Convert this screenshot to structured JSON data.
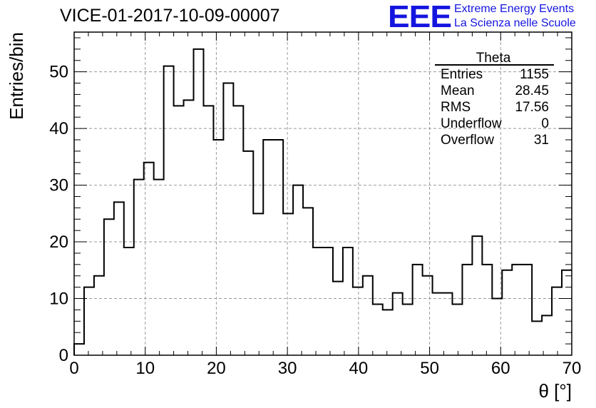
{
  "header": {
    "title": "VICE-01-2017-10-09-00007",
    "logo_text": "EEE",
    "logo_line1": "Extreme Energy Events",
    "logo_line2": "La Scienza nelle Scuole"
  },
  "stats_box": {
    "title": "Theta",
    "rows": [
      {
        "label": "Entries",
        "value": "1155"
      },
      {
        "label": "Mean",
        "value": "28.45"
      },
      {
        "label": "RMS",
        "value": "17.56"
      },
      {
        "label": "Underflow",
        "value": "0"
      },
      {
        "label": "Overflow",
        "value": "31"
      }
    ]
  },
  "colors": {
    "logo": "#1515e0",
    "histogram": "#000000",
    "grid": "#999999"
  },
  "chart_data": {
    "type": "bar",
    "style": "step-histogram",
    "xlabel": "θ [°]",
    "ylabel": "Entries/bin",
    "xlim": [
      0,
      70
    ],
    "ylim": [
      0,
      57
    ],
    "bin_width": 1.4,
    "xticks": [
      0,
      10,
      20,
      30,
      40,
      50,
      60,
      70
    ],
    "yticks": [
      0,
      10,
      20,
      30,
      40,
      50
    ],
    "grid": true,
    "values": [
      2,
      12,
      14,
      24,
      27,
      19,
      31,
      34,
      31,
      51,
      44,
      45,
      54,
      44,
      38,
      48,
      44,
      36,
      25,
      38,
      38,
      25,
      30,
      26,
      19,
      19,
      13,
      19,
      12,
      14,
      9,
      8,
      11,
      9,
      16,
      14,
      11,
      11,
      9,
      16,
      21,
      16,
      10,
      15,
      16,
      16,
      6,
      7,
      12,
      15
    ]
  }
}
